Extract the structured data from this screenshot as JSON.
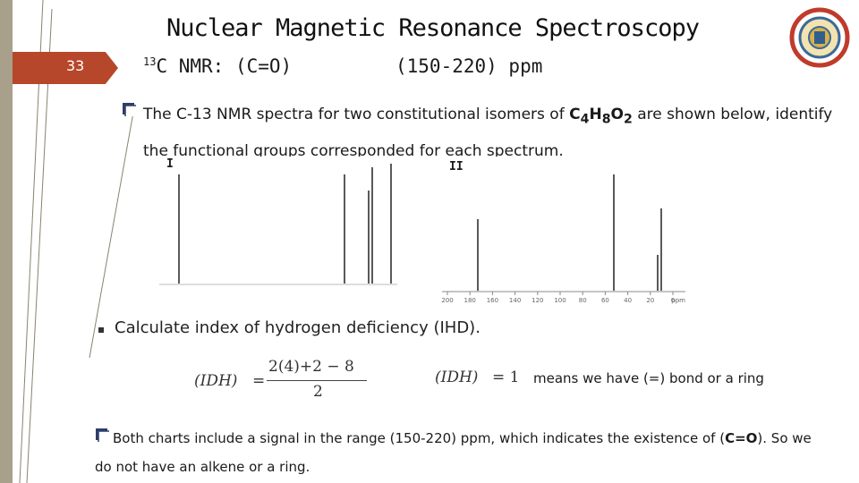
{
  "slide": {
    "number": "33",
    "title": "Nuclear Magnetic Resonance Spectroscopy",
    "subtitle_sup": "13",
    "subtitle_main": "C NMR: (C=O)",
    "subtitle_range": "(150-220) ppm"
  },
  "question": {
    "text_before": "The C-13 NMR spectra for two constitutional isomers of ",
    "formula_c": "C",
    "formula_c_sub": "4",
    "formula_h": "H",
    "formula_h_sub": "8",
    "formula_o": "O",
    "formula_o_sub": "2",
    "text_after": " are shown below, identify the functional groups corresponded for each spectrum."
  },
  "spectra": {
    "spectrum_1_label": "I",
    "spectrum_2_label": "II",
    "spectrum_2_axis_ticks": [
      "200",
      "180",
      "160",
      "140",
      "120",
      "100",
      "80",
      "60",
      "40",
      "20",
      "0"
    ],
    "spectrum_2_axis_unit": "ppm"
  },
  "ihd": {
    "title": "Calculate index of hydrogen deficiency (IHD).",
    "lhs": "(IDH)",
    "numerator": "2(4)+2 − 8",
    "denominator": "2",
    "result_lhs": "(IDH)",
    "result_rhs": "= 1",
    "means": "means we have (=) bond or a ring"
  },
  "conclusion": {
    "text_before": "Both charts include a signal in the range (150-220) ppm, which indicates the existence of (",
    "bold": "C=O",
    "text_after": "). So we do not have an alkene or a ring."
  },
  "colors": {
    "accent": "#b7472a",
    "side_bar": "#a8a08a"
  }
}
